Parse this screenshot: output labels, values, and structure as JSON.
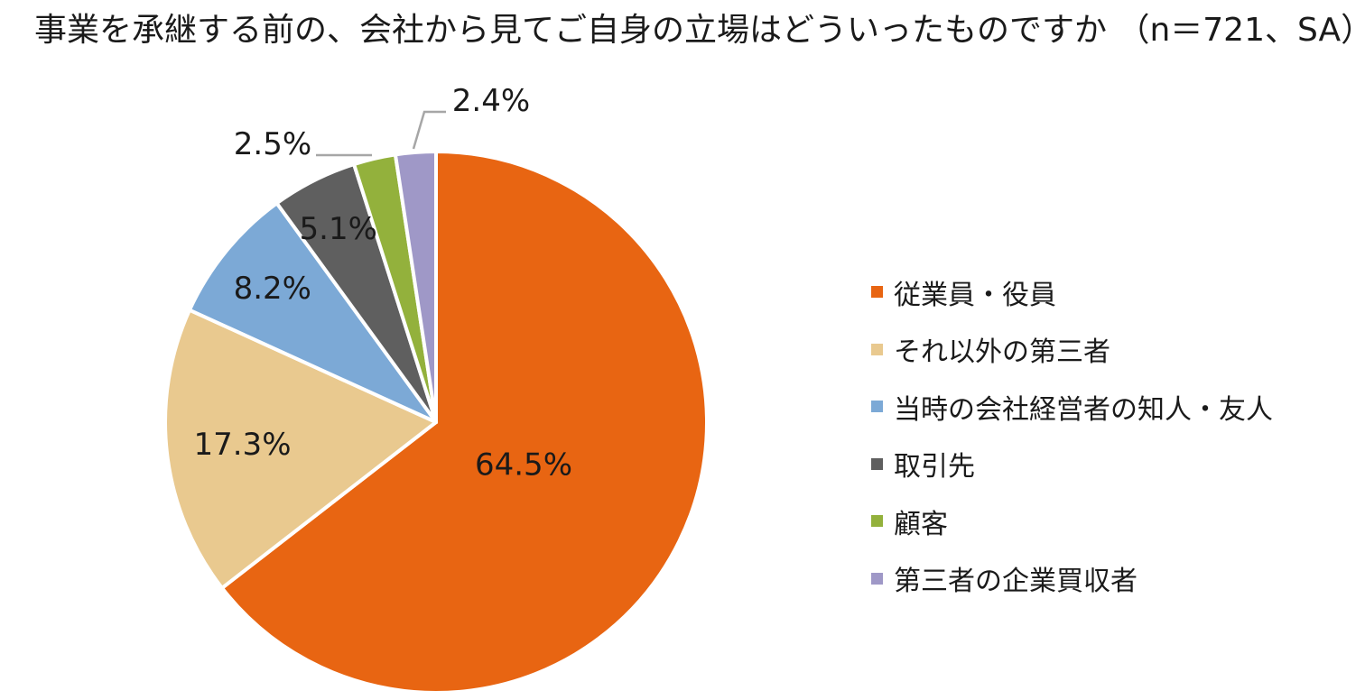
{
  "chart_data": {
    "type": "pie",
    "title": "事業を承継する前の、会社から見てご自身の立場はどういったものですか （n＝721、SA）",
    "slices": [
      {
        "name": "従業員・役員",
        "value": 64.5,
        "label": "64.5%",
        "color": "#E86512"
      },
      {
        "name": "それ以外の第三者",
        "value": 17.3,
        "label": "17.3%",
        "color": "#E9C98F"
      },
      {
        "name": "当時の会社経営者の知人・友人",
        "value": 8.2,
        "label": "8.2%",
        "color": "#7CA9D6"
      },
      {
        "name": "取引先",
        "value": 5.1,
        "label": "5.1%",
        "color": "#5F5F5F"
      },
      {
        "name": "顧客",
        "value": 2.5,
        "label": "2.5%",
        "color": "#93B13C"
      },
      {
        "name": "第三者の企業買収者",
        "value": 2.4,
        "label": "2.4%",
        "color": "#9F98C7"
      }
    ],
    "legend_position": "right"
  }
}
